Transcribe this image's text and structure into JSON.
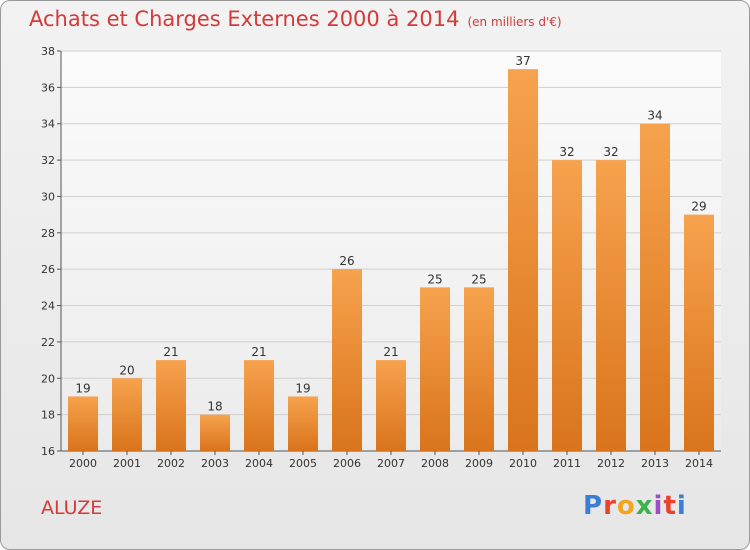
{
  "header": {
    "title": "Achats et Charges Externes 2000 à 2014",
    "unit": "(en milliers d'€)"
  },
  "footer": {
    "commune": "ALUZE",
    "logo": "Proxiti",
    "logo_colors": [
      "#3a7fd5",
      "#e8432e",
      "#f3a521",
      "#3db24a",
      "#9b4fc7",
      "#e8432e",
      "#3a7fd5"
    ]
  },
  "colors": {
    "title": "#d43a3a",
    "bar_light": "#f7a24e",
    "bar_dark": "#d9741c",
    "grid": "#cfcfcf"
  },
  "chart_data": {
    "type": "bar",
    "categories": [
      "2000",
      "2001",
      "2002",
      "2003",
      "2004",
      "2005",
      "2006",
      "2007",
      "2008",
      "2009",
      "2010",
      "2011",
      "2012",
      "2013",
      "2014"
    ],
    "values": [
      19,
      20,
      21,
      18,
      21,
      19,
      26,
      21,
      25,
      25,
      37,
      32,
      32,
      34,
      29
    ],
    "ylim": [
      16,
      38
    ],
    "yticks": [
      16,
      18,
      20,
      22,
      24,
      26,
      28,
      30,
      32,
      34,
      36,
      38
    ],
    "grid": true,
    "data_labels": true
  }
}
